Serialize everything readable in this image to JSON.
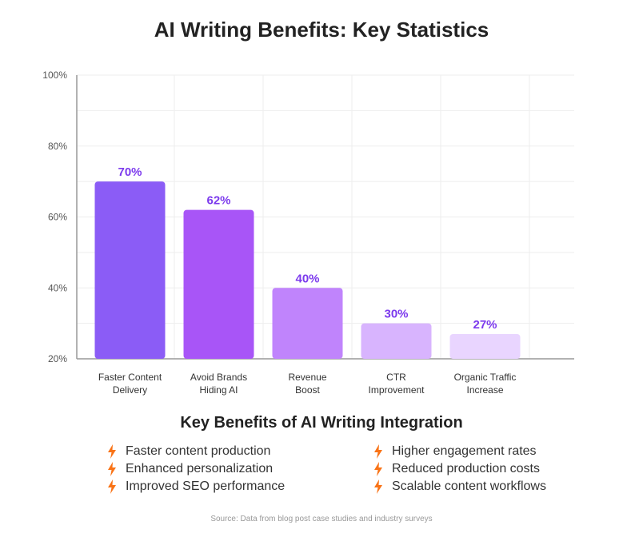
{
  "chart_data": {
    "type": "bar",
    "title": "AI Writing Benefits: Key Statistics",
    "categories": [
      [
        "Faster Content",
        "Delivery"
      ],
      [
        "Avoid Brands",
        "Hiding AI"
      ],
      [
        "Revenue",
        "Boost"
      ],
      [
        "CTR",
        "Improvement"
      ],
      [
        "Organic Traffic",
        "Increase"
      ]
    ],
    "values": [
      70,
      62,
      40,
      30,
      27
    ],
    "value_labels": [
      "70%",
      "62%",
      "40%",
      "30%",
      "27%"
    ],
    "bar_colors": [
      "#8b5cf6",
      "#a855f7",
      "#c084fc",
      "#d8b4fe",
      "#e9d5ff"
    ],
    "ylim": [
      20,
      100
    ],
    "yticks": [
      20,
      40,
      60,
      80,
      100
    ],
    "ytick_labels": [
      "20%",
      "40%",
      "60%",
      "80%",
      "100%"
    ],
    "grid": true,
    "xlabel": "",
    "ylabel": ""
  },
  "benefits": {
    "title": "Key Benefits of AI Writing Integration",
    "left": [
      "Faster content production",
      "Enhanced personalization",
      "Improved SEO performance"
    ],
    "right": [
      "Higher engagement rates",
      "Reduced production costs",
      "Scalable content workflows"
    ],
    "icon": "lightning-bolt-icon",
    "icon_color": "#f97316"
  },
  "source": "Source: Data from blog post case studies and industry surveys",
  "colors": {
    "value_label": "#7c3aed",
    "grid": "#eeeeee",
    "axis": "#999999"
  }
}
